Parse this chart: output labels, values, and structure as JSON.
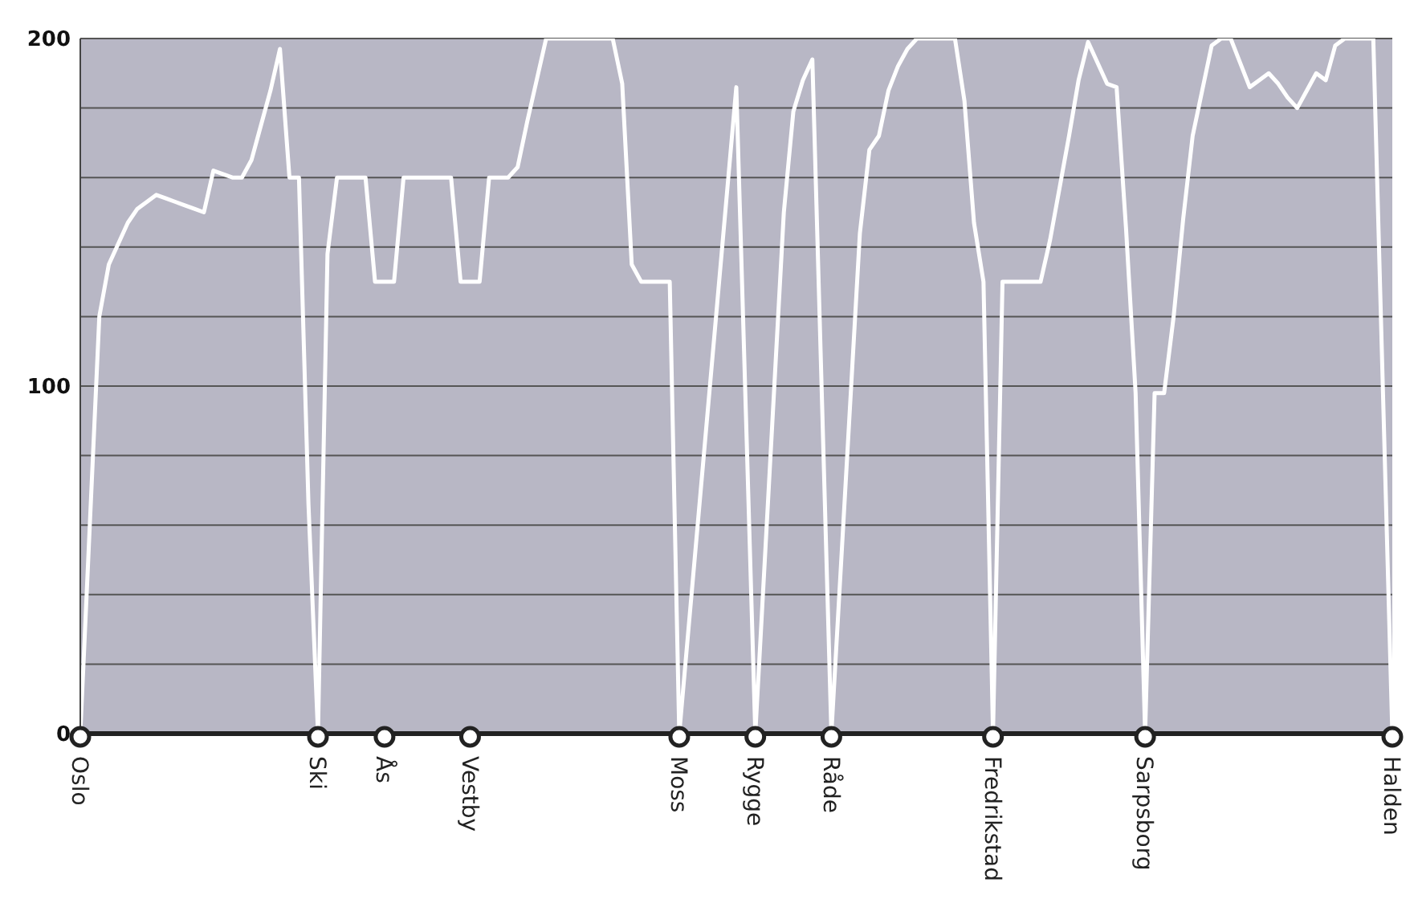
{
  "chart_data": {
    "type": "line",
    "categories": [
      "Oslo",
      null,
      null,
      null,
      null,
      null,
      null,
      null,
      null,
      null,
      null,
      null,
      null,
      null,
      null,
      null,
      null,
      null,
      null,
      null,
      null,
      null,
      null,
      null,
      null,
      "Ski",
      null,
      null,
      null,
      null,
      null,
      null,
      "Ås",
      null,
      null,
      null,
      null,
      null,
      null,
      null,
      null,
      "Vestby",
      null,
      null,
      null,
      null,
      null,
      null,
      null,
      null,
      null,
      null,
      null,
      null,
      null,
      null,
      null,
      null,
      null,
      null,
      null,
      null,
      null,
      "Moss",
      null,
      null,
      null,
      null,
      null,
      null,
      null,
      "Rygge",
      null,
      null,
      null,
      null,
      null,
      null,
      null,
      "Råde",
      null,
      null,
      null,
      null,
      null,
      null,
      null,
      null,
      null,
      null,
      null,
      null,
      null,
      null,
      null,
      null,
      "Fredrikstad",
      null,
      null,
      null,
      null,
      null,
      null,
      null,
      null,
      null,
      null,
      null,
      null,
      null,
      null,
      null,
      "Sarpsborg",
      null,
      null,
      null,
      null,
      null,
      null,
      null,
      null,
      null,
      null,
      null,
      null,
      null,
      null,
      null,
      null,
      null,
      null,
      null,
      null,
      null,
      null,
      null,
      null,
      null,
      "Halden"
    ],
    "series": [
      {
        "color": "#ffffff",
        "values": [
          0,
          60,
          120,
          135,
          141,
          147,
          151,
          153,
          155,
          154,
          153,
          152,
          151,
          150,
          162,
          161,
          160,
          160,
          165,
          175,
          185,
          197,
          160,
          160,
          66,
          0,
          138,
          160,
          160,
          160,
          160,
          130,
          130,
          130,
          160,
          160,
          160,
          160,
          160,
          160,
          130,
          130,
          130,
          160,
          160,
          160,
          163,
          176,
          188,
          200,
          200,
          200,
          200,
          200,
          200,
          200,
          200,
          187,
          135,
          130,
          130,
          130,
          130,
          0,
          31,
          62,
          93,
          124,
          155,
          186,
          93,
          0,
          50,
          100,
          150,
          179,
          188,
          194,
          97,
          0,
          48,
          96,
          144,
          168,
          172,
          185,
          192,
          197,
          200,
          200,
          200,
          200,
          200,
          182,
          147,
          130,
          0,
          130,
          130,
          130,
          130,
          130,
          142,
          157,
          172,
          188,
          199,
          193,
          187,
          186,
          145,
          98,
          0,
          98,
          98,
          120,
          148,
          172,
          185,
          198,
          200,
          200,
          193,
          186,
          188,
          190,
          187,
          183,
          180,
          185,
          190,
          188,
          198,
          200,
          200,
          200,
          200,
          100,
          0
        ]
      }
    ],
    "ylim": [
      0,
      200
    ],
    "yticks": [
      0,
      {
        "value": 20,
        "label": null
      },
      {
        "value": 40,
        "label": null
      },
      {
        "value": 60,
        "label": null
      },
      {
        "value": 80,
        "label": null
      },
      100,
      {
        "value": 120,
        "label": null
      },
      {
        "value": 140,
        "label": null
      },
      {
        "value": 160,
        "label": null
      },
      {
        "value": 180,
        "label": null
      },
      200
    ],
    "grid": "y",
    "legend": false,
    "marker": "none",
    "line_style": "solid"
  }
}
